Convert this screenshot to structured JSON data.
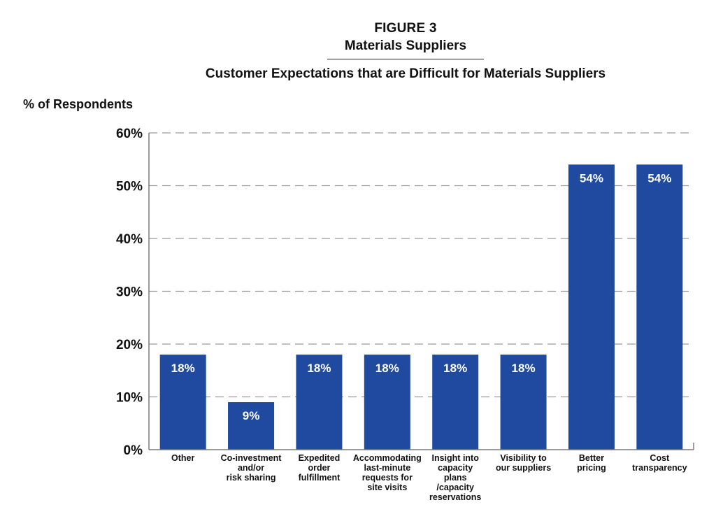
{
  "figure": {
    "label": "FIGURE 3",
    "subtitle": "Materials Suppliers"
  },
  "chart_data": {
    "type": "bar",
    "title": "Customer Expectations that are Difficult for Materials Suppliers",
    "ylabel": "% of Respondents",
    "xlabel": "",
    "ylim": [
      0,
      60
    ],
    "yticks": [
      "0%",
      "10%",
      "20%",
      "30%",
      "40%",
      "50%",
      "60%"
    ],
    "grid": "horizontal dashed",
    "categories": [
      [
        "Other"
      ],
      [
        "Co-investment",
        "and/or",
        "risk sharing"
      ],
      [
        "Expedited",
        "order",
        "fulfillment"
      ],
      [
        "Accommodating",
        "last-minute",
        "requests for",
        "site visits"
      ],
      [
        "Insight into",
        "capacity",
        "plans",
        "/capacity",
        "reservations"
      ],
      [
        "Visibility to",
        "our suppliers"
      ],
      [
        "Better",
        "pricing"
      ],
      [
        "Cost",
        "transparency"
      ]
    ],
    "values": [
      18,
      9,
      18,
      18,
      18,
      18,
      54,
      54
    ],
    "data_labels": [
      "18%",
      "9%",
      "18%",
      "18%",
      "18%",
      "18%",
      "54%",
      "54%"
    ],
    "bar_color": "#1f4aa0",
    "label_color": "#ffffff"
  }
}
